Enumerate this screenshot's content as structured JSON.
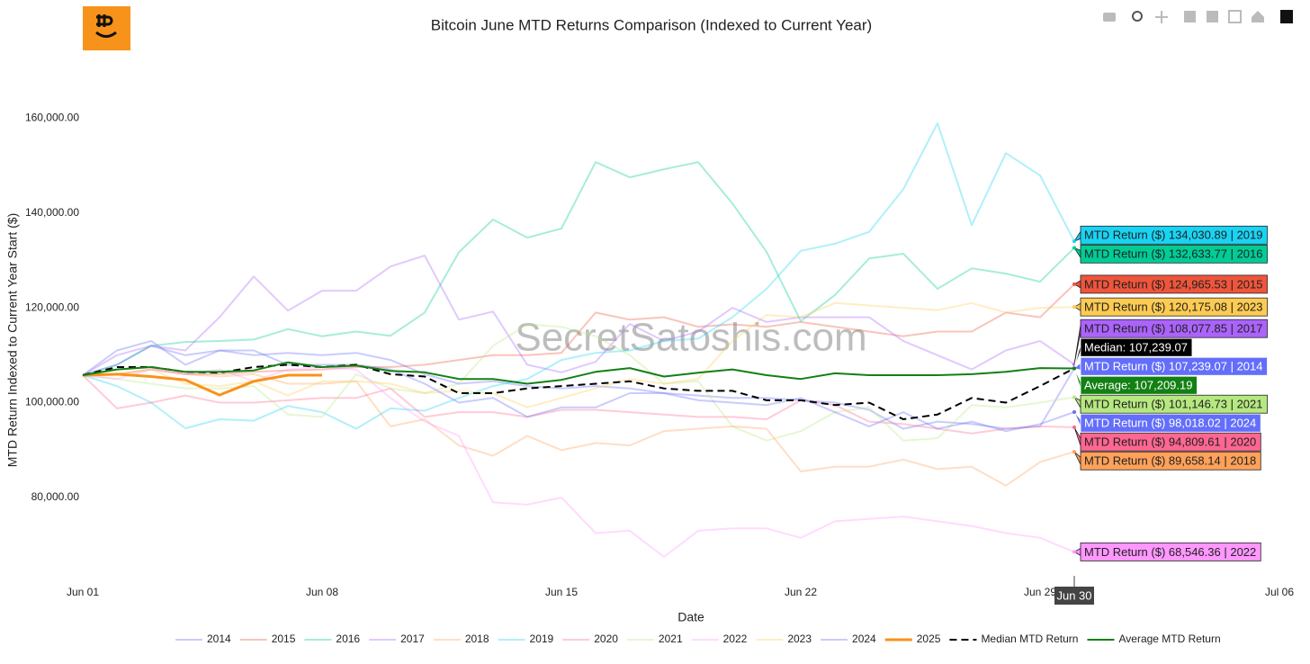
{
  "chart_data": {
    "type": "line",
    "title": "Bitcoin June MTD Returns Comparison (Indexed to Current Year)",
    "xlabel": "Date",
    "ylabel": "MTD Return Indexed to Current Year Start ($)",
    "watermark": "SecretSatoshis.com",
    "x": [
      1,
      2,
      3,
      4,
      5,
      6,
      7,
      8,
      9,
      10,
      11,
      12,
      13,
      14,
      15,
      16,
      17,
      18,
      19,
      20,
      21,
      22,
      23,
      24,
      25,
      26,
      27,
      28,
      29,
      30
    ],
    "xlim": [
      1,
      36
    ],
    "xticks": [
      {
        "value": 1,
        "label": "Jun 01"
      },
      {
        "value": 8,
        "label": "Jun 08"
      },
      {
        "value": 15,
        "label": "Jun 15"
      },
      {
        "value": 22,
        "label": "Jun 22"
      },
      {
        "value": 29,
        "label": "Jun 29"
      },
      {
        "value": 36,
        "label": "Jul 06"
      }
    ],
    "ylim": [
      63500,
      173500
    ],
    "yticks": [
      {
        "value": 80000,
        "label": "80,000.00"
      },
      {
        "value": 100000,
        "label": "100,000.00"
      },
      {
        "value": 120000,
        "label": "120,000.00"
      },
      {
        "value": 140000,
        "label": "140,000.00"
      },
      {
        "value": 160000,
        "label": "160,000.00"
      }
    ],
    "grid": false,
    "legend": "bottom",
    "hover": {
      "x": 30,
      "label": "Jun 30"
    },
    "series": [
      {
        "name": "2014",
        "color": "#636efa",
        "opacity": 0.35,
        "hover_label": "MTD Return ($) 107,239.07 | 2014",
        "values": [
          105800,
          111000,
          113000,
          108000,
          111000,
          110000,
          110500,
          110000,
          110500,
          109000,
          106000,
          104000,
          104500,
          103500,
          103000,
          103500,
          103000,
          102000,
          101500,
          101000,
          101000,
          100500,
          100000,
          98500,
          94500,
          96000,
          95500,
          94500,
          95000,
          107239.07
        ]
      },
      {
        "name": "2015",
        "color": "#ef553b",
        "opacity": 0.35,
        "hover_label": "MTD Return ($) 124,965.53 | 2015",
        "values": [
          105800,
          106000,
          107000,
          106000,
          106000,
          106500,
          106800,
          107000,
          107500,
          107500,
          108000,
          109000,
          110000,
          110000,
          110500,
          119000,
          117500,
          118000,
          116000,
          116500,
          116000,
          117000,
          116000,
          115000,
          114000,
          115000,
          115000,
          119000,
          118000,
          124965.53
        ]
      },
      {
        "name": "2016",
        "color": "#00cc96",
        "opacity": 0.35,
        "hover_label": "MTD Return ($) 132,633.77 | 2016",
        "values": [
          105800,
          108000,
          112000,
          112800,
          113000,
          113300,
          115500,
          114000,
          115000,
          114100,
          119000,
          131700,
          138600,
          134800,
          136700,
          150700,
          147500,
          149200,
          150700,
          142000,
          131800,
          117200,
          122700,
          130400,
          131400,
          124000,
          128300,
          127200,
          125500,
          132633.77
        ]
      },
      {
        "name": "2017",
        "color": "#ab63fa",
        "opacity": 0.35,
        "hover_label": "MTD Return ($) 108,077.85 | 2017",
        "values": [
          105800,
          110000,
          112000,
          111000,
          118000,
          126600,
          119400,
          123600,
          123600,
          128700,
          131000,
          117500,
          119200,
          108000,
          106400,
          108600,
          116600,
          113000,
          115000,
          120000,
          117000,
          118000,
          118000,
          118000,
          113000,
          110000,
          107000,
          111000,
          113000,
          108077.85
        ]
      },
      {
        "name": "2018",
        "color": "#ffa15a",
        "opacity": 0.35,
        "hover_label": "MTD Return ($) 89,658.14 | 2018",
        "values": [
          105800,
          107000,
          107500,
          106000,
          105500,
          106000,
          104000,
          104000,
          104500,
          95000,
          96500,
          91000,
          88800,
          93000,
          90000,
          91500,
          91000,
          94000,
          94500,
          95000,
          94500,
          85500,
          86500,
          86500,
          88000,
          86000,
          86500,
          82500,
          87500,
          89658.14
        ]
      },
      {
        "name": "2019",
        "color": "#19d3f3",
        "opacity": 0.35,
        "hover_label": "MTD Return ($) 134,030.89 | 2019",
        "values": [
          105800,
          103500,
          100000,
          94600,
          96500,
          96200,
          99300,
          98000,
          94500,
          98800,
          98300,
          101000,
          103500,
          105000,
          109000,
          110500,
          111000,
          113000,
          113500,
          118000,
          124000,
          132000,
          133500,
          136000,
          145000,
          158900,
          137400,
          152600,
          147900,
          134030.89
        ]
      },
      {
        "name": "2020",
        "color": "#ff6692",
        "opacity": 0.35,
        "hover_label": "MTD Return ($) 94,809.61 | 2020",
        "values": [
          105800,
          98800,
          100000,
          101500,
          100000,
          100000,
          100500,
          101000,
          101000,
          103000,
          97000,
          98000,
          98000,
          97000,
          98500,
          98500,
          98000,
          97500,
          97000,
          97000,
          96500,
          100500,
          99500,
          96000,
          95500,
          94500,
          93500,
          94500,
          95000,
          94809.61
        ]
      },
      {
        "name": "2021",
        "color": "#b6e880",
        "opacity": 0.35,
        "hover_label": "MTD Return ($) 101,146.73 | 2021",
        "values": [
          105800,
          105000,
          104000,
          103000,
          103000,
          103500,
          97500,
          97000,
          106000,
          103000,
          102000,
          104000,
          112000,
          116500,
          116000,
          114000,
          110000,
          104000,
          104500,
          95000,
          92000,
          94000,
          98000,
          99000,
          92000,
          92500,
          99500,
          99000,
          100000,
          101146.73
        ]
      },
      {
        "name": "2022",
        "color": "#ff97ff",
        "opacity": 0.35,
        "hover_label": "MTD Return ($) 68,546.36 | 2022",
        "values": [
          105800,
          105000,
          107000,
          106000,
          107000,
          104500,
          107000,
          107500,
          107000,
          101000,
          96000,
          93000,
          79000,
          78500,
          80000,
          72500,
          73000,
          67500,
          73000,
          73500,
          73500,
          71500,
          75000,
          75500,
          76000,
          75000,
          74000,
          72500,
          71500,
          68546.36
        ]
      },
      {
        "name": "2023",
        "color": "#fecb52",
        "opacity": 0.35,
        "hover_label": "MTD Return ($) 120,175.08 | 2023",
        "values": [
          105800,
          106000,
          107000,
          104000,
          103500,
          104500,
          101500,
          104500,
          104500,
          104000,
          102000,
          102500,
          102000,
          99000,
          101000,
          103000,
          105000,
          104000,
          105000,
          113000,
          118500,
          118000,
          121000,
          120500,
          120000,
          119500,
          121000,
          119000,
          120000,
          120175.08
        ]
      },
      {
        "name": "2024",
        "color": "#636efa",
        "opacity": 0.35,
        "hover_label": "MTD Return ($) 98,018.02 | 2024",
        "values": [
          105800,
          108000,
          112000,
          110000,
          111000,
          111000,
          108000,
          108000,
          108000,
          107000,
          104000,
          100000,
          101000,
          97000,
          99000,
          99000,
          102000,
          102000,
          100500,
          100000,
          99500,
          101000,
          98000,
          95000,
          98000,
          94500,
          96000,
          94000,
          95500,
          98018.02
        ]
      },
      {
        "name": "2025",
        "color": "#f7931a",
        "opacity": 1,
        "width": 3,
        "values": [
          105800,
          106000,
          105500,
          104800,
          101600,
          104500,
          105800,
          105800,
          null,
          null,
          null,
          null,
          null,
          null,
          null,
          null,
          null,
          null,
          null,
          null,
          null,
          null,
          null,
          null,
          null,
          null,
          null,
          null,
          null,
          null
        ]
      },
      {
        "name": "Median MTD Return",
        "color": "#000000",
        "opacity": 1,
        "dash": true,
        "hover_label": "Median: 107,239.07",
        "values": [
          105800,
          107500,
          107500,
          106500,
          106300,
          107500,
          108000,
          107500,
          108000,
          106000,
          105500,
          102000,
          102000,
          103000,
          103500,
          104000,
          104500,
          103000,
          102500,
          102500,
          100500,
          100500,
          99500,
          100000,
          96500,
          97500,
          101000,
          100000,
          103500,
          107239.07
        ]
      },
      {
        "name": "Average MTD Return",
        "color": "#138013",
        "opacity": 1,
        "hover_label": "Average: 107,209.19",
        "values": [
          105800,
          107000,
          107500,
          106500,
          106500,
          106800,
          108500,
          107500,
          107800,
          106700,
          106400,
          105000,
          105000,
          104000,
          104800,
          106500,
          107300,
          105500,
          106300,
          107000,
          105800,
          105000,
          106200,
          105800,
          105800,
          105800,
          106000,
          106500,
          107300,
          107209.19
        ]
      }
    ]
  }
}
